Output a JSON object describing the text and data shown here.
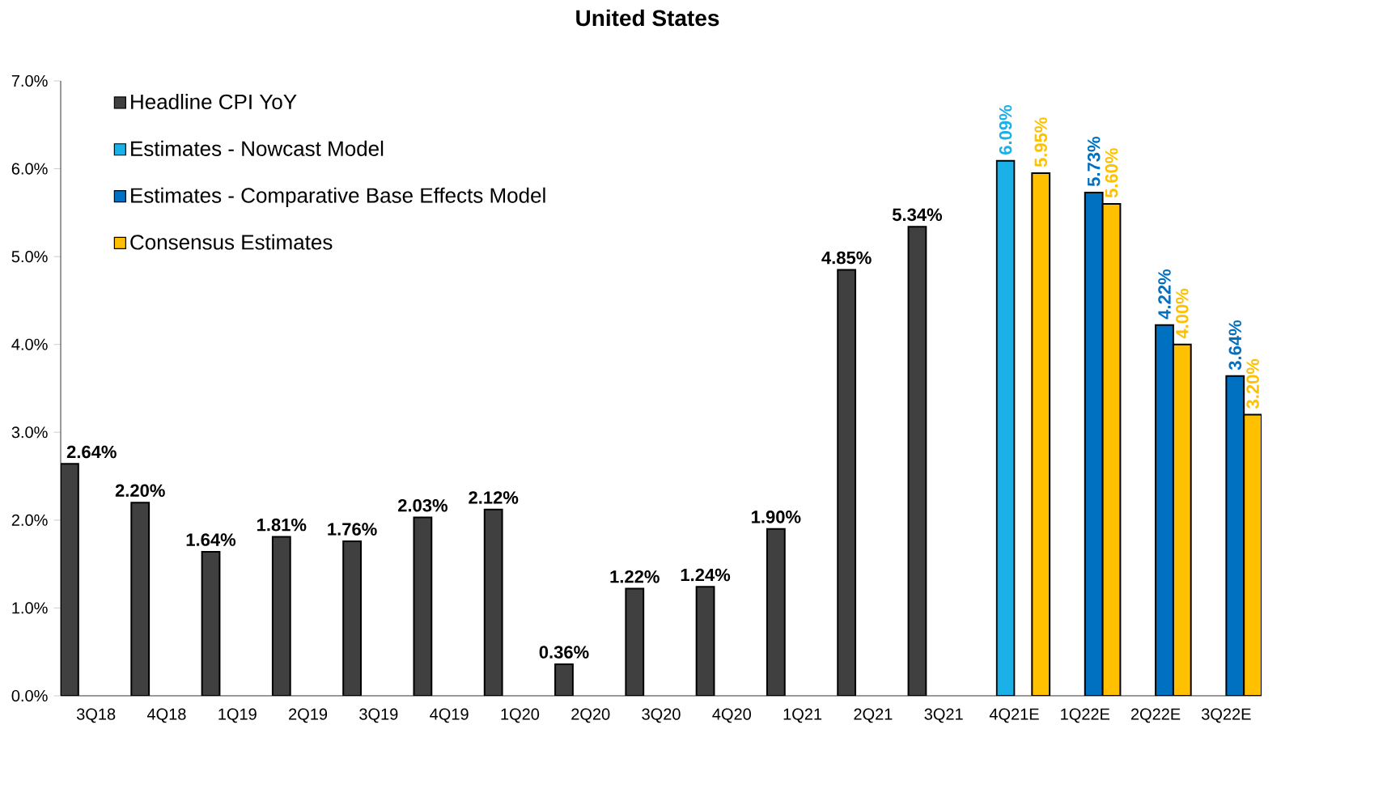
{
  "chart_data": {
    "type": "bar",
    "title": "United States",
    "categories": [
      "3Q18",
      "4Q18",
      "1Q19",
      "2Q19",
      "3Q19",
      "4Q19",
      "1Q20",
      "2Q20",
      "3Q20",
      "4Q20",
      "1Q21",
      "2Q21",
      "3Q21",
      "4Q21E",
      "1Q22E",
      "2Q22E",
      "3Q22E"
    ],
    "series": [
      {
        "name": "Headline CPI YoY",
        "color": "#404040",
        "values": [
          2.64,
          2.2,
          1.64,
          1.81,
          1.76,
          2.03,
          2.12,
          0.36,
          1.22,
          1.24,
          1.9,
          4.85,
          5.34,
          null,
          null,
          null,
          null
        ],
        "value_labels": [
          "2.64%",
          "2.20%",
          "1.64%",
          "1.81%",
          "1.76%",
          "2.03%",
          "2.12%",
          "0.36%",
          "1.22%",
          "1.24%",
          "1.90%",
          "4.85%",
          "5.34%",
          null,
          null,
          null,
          null
        ]
      },
      {
        "name": "Estimates - Nowcast Model",
        "color": "#1ab0e8",
        "values": [
          null,
          null,
          null,
          null,
          null,
          null,
          null,
          null,
          null,
          null,
          null,
          null,
          null,
          6.09,
          null,
          null,
          null
        ],
        "value_labels": [
          null,
          null,
          null,
          null,
          null,
          null,
          null,
          null,
          null,
          null,
          null,
          null,
          null,
          "6.09%",
          null,
          null,
          null
        ]
      },
      {
        "name": "Estimates - Comparative Base Effects Model",
        "color": "#0070c0",
        "values": [
          null,
          null,
          null,
          null,
          null,
          null,
          null,
          null,
          null,
          null,
          null,
          null,
          null,
          null,
          5.73,
          4.22,
          3.64
        ],
        "value_labels": [
          null,
          null,
          null,
          null,
          null,
          null,
          null,
          null,
          null,
          null,
          null,
          null,
          null,
          null,
          "5.73%",
          "4.22%",
          "3.64%"
        ]
      },
      {
        "name": "Consensus Estimates",
        "color": "#ffc000",
        "values": [
          null,
          null,
          null,
          null,
          null,
          null,
          null,
          null,
          null,
          null,
          null,
          null,
          null,
          5.95,
          5.6,
          4.0,
          3.2
        ],
        "value_labels": [
          null,
          null,
          null,
          null,
          null,
          null,
          null,
          null,
          null,
          null,
          null,
          null,
          null,
          "5.95%",
          "5.60%",
          "4.00%",
          "3.20%"
        ]
      }
    ],
    "ylim": [
      0,
      7
    ],
    "yticks": [
      {
        "value": 0,
        "label": "0.0%"
      },
      {
        "value": 1,
        "label": "1.0%"
      },
      {
        "value": 2,
        "label": "2.0%"
      },
      {
        "value": 3,
        "label": "3.0%"
      },
      {
        "value": 4,
        "label": "4.0%"
      },
      {
        "value": 5,
        "label": "5.0%"
      },
      {
        "value": 6,
        "label": "6.0%"
      },
      {
        "value": 7,
        "label": "7.0%"
      }
    ],
    "grid": false,
    "legend": "top left"
  }
}
